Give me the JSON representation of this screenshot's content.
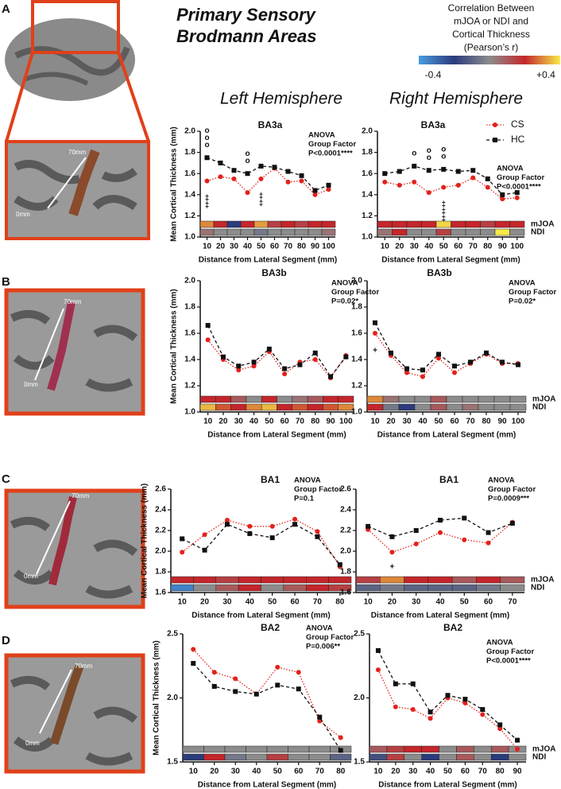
{
  "figure": {
    "title": [
      "Primary Sensory",
      "Brodmann Areas"
    ],
    "hemispheres": [
      "Left Hemisphere",
      "Right Hemisphere"
    ],
    "panels": [
      {
        "label": "A",
        "scale_labels": [
          "70mm",
          "0mm"
        ]
      },
      {
        "label": "B",
        "scale_labels": [
          "70mm",
          "0mm"
        ]
      },
      {
        "label": "C",
        "scale_labels": [
          "70mm",
          "0mm"
        ]
      },
      {
        "label": "D",
        "scale_labels": [
          "70mm",
          "0mm"
        ]
      }
    ],
    "colorbar": {
      "title": [
        "Correlation Between",
        "mJOA or NDI and",
        "Cortical Thickness",
        "(Pearson’s r)"
      ],
      "range": [
        -0.4,
        0.4
      ],
      "colors": [
        "#4a9be0",
        "#2c3b7c",
        "#8c8c8c",
        "#c4262b",
        "#f7ea4a"
      ],
      "ticks": [
        -0.4,
        {
          "value": 0.4,
          "label": "+0.4"
        }
      ]
    }
  },
  "chart_data": [
    {
      "type": "line",
      "title": "BA3a",
      "annotation": [
        "ANOVA",
        "Group Factor",
        "P<0.0001****"
      ],
      "ylabel": "Mean Cortical Thickness (mm)",
      "xlabel": "Distance from Lateral Segment (mm)",
      "x": [
        10,
        20,
        30,
        40,
        50,
        60,
        70,
        80,
        90,
        100
      ],
      "xlim": [
        5,
        105
      ],
      "ylim": [
        1,
        2
      ],
      "yticks": [
        {
          "value": 1,
          "label": "1.0"
        },
        1.2,
        1.4,
        1.6,
        1.8,
        {
          "value": 2,
          "label": "2.0"
        }
      ],
      "series": [
        {
          "name": "CS",
          "color": "#e3211c",
          "line_style": "dotted",
          "marker": "circle",
          "values": [
            1.53,
            1.57,
            1.55,
            1.42,
            1.55,
            1.65,
            1.52,
            1.53,
            1.4,
            1.45
          ]
        },
        {
          "name": "HC",
          "color": "#111111",
          "line_style": "dashed",
          "marker": "square",
          "values": [
            1.75,
            1.7,
            1.63,
            1.6,
            1.67,
            1.66,
            1.62,
            1.58,
            1.44,
            1.49
          ]
        }
      ],
      "strips": [
        {
          "values": [
            0.3,
            0.2,
            -0.2,
            0.2,
            0.32,
            0.15,
            0.2,
            0.15,
            0.2,
            0.2
          ]
        },
        {
          "values": [
            0.05,
            0,
            0,
            0,
            -0.05,
            0,
            0,
            0,
            0,
            0.05
          ]
        }
      ],
      "sig_above": [
        {
          "x": 10,
          "symbols": [
            "o",
            "o",
            "o"
          ]
        },
        {
          "x": 40,
          "symbols": [
            "o",
            "o"
          ]
        }
      ],
      "sig_below": [
        {
          "x": 10,
          "symbols": [
            "‡",
            "‡"
          ]
        },
        {
          "x": 50,
          "symbols": [
            "‡",
            "‡"
          ]
        }
      ]
    },
    {
      "type": "line",
      "title": "BA3a",
      "annotation": [
        "ANOVA",
        "Group Factor",
        "P<0.0001****"
      ],
      "legend": true,
      "xlabel": "Distance from Lateral Segment (mm)",
      "x": [
        10,
        20,
        30,
        40,
        50,
        60,
        70,
        80,
        90,
        100
      ],
      "xlim": [
        5,
        105
      ],
      "ylim": [
        1,
        2
      ],
      "yticks": [
        {
          "value": 1,
          "label": "1.0"
        },
        1.2,
        1.4,
        1.6,
        1.8,
        {
          "value": 2,
          "label": "2.0"
        }
      ],
      "series": [
        {
          "name": "CS",
          "color": "#e3211c",
          "line_style": "dotted",
          "marker": "circle",
          "values": [
            1.52,
            1.49,
            1.52,
            1.42,
            1.47,
            1.49,
            1.56,
            1.47,
            1.36,
            1.37
          ]
        },
        {
          "name": "HC",
          "color": "#111111",
          "line_style": "dashed",
          "marker": "square",
          "values": [
            1.6,
            1.62,
            1.67,
            1.63,
            1.64,
            1.62,
            1.63,
            1.55,
            1.4,
            1.42
          ]
        }
      ],
      "strips": [
        {
          "name": "mJOA",
          "values": [
            0.2,
            0.2,
            0.2,
            0.2,
            0.38,
            0.2,
            0.2,
            0.15,
            0.2,
            0.2
          ]
        },
        {
          "name": "NDI",
          "values": [
            0.05,
            0.2,
            0,
            0,
            0.15,
            0,
            0,
            0,
            0.4,
            0
          ]
        }
      ],
      "sig_above": [
        {
          "x": 30,
          "symbols": [
            "o"
          ]
        },
        {
          "x": 40,
          "symbols": [
            "o",
            "o"
          ]
        },
        {
          "x": 50,
          "symbols": [
            "o",
            "o"
          ]
        }
      ],
      "sig_below": [
        {
          "x": 50,
          "symbols": [
            "‡",
            "‡",
            "‡"
          ]
        }
      ]
    },
    {
      "type": "line",
      "title": "BA3b",
      "annotation": [
        "ANOVA",
        "Group Factor",
        "P=0.02*"
      ],
      "ylabel": "Mean Cortical Thickness (mm)",
      "xlabel": "Distance from Lateral Segment (mm)",
      "x": [
        10,
        20,
        30,
        40,
        50,
        60,
        70,
        80,
        90,
        100
      ],
      "xlim": [
        5,
        105
      ],
      "ylim": [
        1,
        2
      ],
      "yticks": [
        {
          "value": 1,
          "label": "1.0"
        },
        1.2,
        1.4,
        1.6,
        1.8,
        {
          "value": 2,
          "label": "2.0"
        }
      ],
      "series": [
        {
          "name": "CS",
          "color": "#e3211c",
          "line_style": "dotted",
          "marker": "circle",
          "values": [
            1.55,
            1.4,
            1.32,
            1.35,
            1.46,
            1.29,
            1.38,
            1.4,
            1.26,
            1.43
          ]
        },
        {
          "name": "HC",
          "color": "#111111",
          "line_style": "dashed",
          "marker": "square",
          "values": [
            1.66,
            1.42,
            1.35,
            1.38,
            1.48,
            1.33,
            1.36,
            1.45,
            1.27,
            1.42
          ]
        }
      ],
      "strips": [
        {
          "values": [
            0.2,
            0.2,
            0.1,
            0,
            0.2,
            0,
            0.05,
            0.1,
            0.2,
            0.2
          ]
        },
        {
          "values": [
            0.35,
            0.25,
            0.2,
            0.3,
            0.35,
            0.2,
            0.25,
            0.2,
            0.25,
            0.3
          ]
        }
      ]
    },
    {
      "type": "line",
      "title": "BA3b",
      "annotation": [
        "ANOVA",
        "Group Factor",
        "P=0.02*"
      ],
      "xlabel": "Distance from Lateral Segment (mm)",
      "x": [
        10,
        20,
        30,
        40,
        50,
        60,
        70,
        80,
        90,
        100
      ],
      "xlim": [
        5,
        105
      ],
      "ylim": [
        1,
        2
      ],
      "yticks": [
        {
          "value": 1,
          "label": "1.0"
        },
        1.2,
        1.4,
        1.6,
        1.8,
        {
          "value": 2,
          "label": "2.0"
        }
      ],
      "series": [
        {
          "name": "CS",
          "color": "#e3211c",
          "line_style": "dotted",
          "marker": "circle",
          "values": [
            1.6,
            1.43,
            1.3,
            1.27,
            1.41,
            1.3,
            1.37,
            1.44,
            1.37,
            1.37
          ]
        },
        {
          "name": "HC",
          "color": "#111111",
          "line_style": "dashed",
          "marker": "square",
          "values": [
            1.68,
            1.45,
            1.33,
            1.32,
            1.44,
            1.35,
            1.38,
            1.45,
            1.38,
            1.36
          ]
        }
      ],
      "strips": [
        {
          "name": "mJOA",
          "values": [
            0.3,
            0.05,
            0,
            0,
            0.1,
            0,
            0,
            0,
            0,
            0
          ]
        },
        {
          "name": "NDI",
          "values": [
            0.2,
            -0.05,
            -0.2,
            0,
            0.1,
            0,
            0.05,
            0,
            0,
            0
          ]
        }
      ],
      "sig_below": [
        {
          "x": 10,
          "symbols": [
            "+"
          ]
        }
      ]
    },
    {
      "type": "line",
      "title": "BA1",
      "annotation": [
        "ANOVA",
        "Group Factor",
        "P=0.1"
      ],
      "ylabel": "Mean Cortical Thickness (mm)",
      "xlabel": "Distance from Lateral Segment (mm)",
      "x": [
        10,
        20,
        30,
        40,
        50,
        60,
        70,
        80
      ],
      "xlim": [
        5,
        85
      ],
      "ylim": [
        1.6,
        2.6
      ],
      "yticks": [
        1.6,
        1.8,
        {
          "value": 2,
          "label": "2.0"
        },
        2.2,
        2.4,
        2.6
      ],
      "series": [
        {
          "name": "CS",
          "color": "#e3211c",
          "line_style": "dotted",
          "marker": "circle",
          "values": [
            1.99,
            2.16,
            2.3,
            2.24,
            2.24,
            2.31,
            2.19,
            1.85
          ]
        },
        {
          "name": "HC",
          "color": "#111111",
          "line_style": "dashed",
          "marker": "square",
          "values": [
            2.12,
            2.01,
            2.26,
            2.17,
            2.13,
            2.26,
            2.14,
            1.87
          ]
        }
      ],
      "strips": [
        {
          "values": [
            0.2,
            0.2,
            0.15,
            0.2,
            0.2,
            0.2,
            0.2,
            0.2
          ]
        },
        {
          "values": [
            -0.35,
            0,
            0.1,
            0.2,
            0,
            0.1,
            0.2,
            0.15
          ]
        }
      ]
    },
    {
      "type": "line",
      "title": "BA1",
      "annotation": [
        "ANOVA",
        "Group Factor",
        "P=0.0009***"
      ],
      "xlabel": "Distance from Lateral Segment (mm)",
      "x": [
        10,
        20,
        30,
        40,
        50,
        60,
        70
      ],
      "xlim": [
        5,
        75
      ],
      "ylim": [
        1.6,
        2.6
      ],
      "yticks": [
        1.6,
        1.8,
        {
          "value": 2,
          "label": "2.0"
        },
        2.2,
        2.4,
        2.6
      ],
      "series": [
        {
          "name": "CS",
          "color": "#e3211c",
          "line_style": "dotted",
          "marker": "circle",
          "values": [
            2.21,
            1.99,
            2.07,
            2.18,
            2.11,
            2.08,
            2.28
          ]
        },
        {
          "name": "HC",
          "color": "#111111",
          "line_style": "dashed",
          "marker": "square",
          "values": [
            2.24,
            2.14,
            2.2,
            2.3,
            2.32,
            2.18,
            2.27
          ]
        }
      ],
      "strips": [
        {
          "name": "mJOA",
          "values": [
            0.15,
            0.3,
            0.2,
            0.2,
            0.1,
            0.2,
            0.1
          ]
        },
        {
          "name": "NDI",
          "values": [
            -0.1,
            -0.05,
            -0.1,
            -0.1,
            -0.1,
            -0.05,
            0
          ]
        }
      ],
      "sig_below": [
        {
          "x": 20,
          "symbols": [
            "+"
          ]
        }
      ]
    },
    {
      "type": "line",
      "title": "BA2",
      "annotation": [
        "ANOVA",
        "Group Factor",
        "P=0.006**"
      ],
      "ylabel": "Mean Cortical Thickness (mm)",
      "xlabel": "Distance from Lateral Segment (mm)",
      "x": [
        10,
        20,
        30,
        40,
        50,
        60,
        70,
        80
      ],
      "xlim": [
        5,
        85
      ],
      "ylim": [
        1.5,
        2.5
      ],
      "yticks": [
        1.5,
        {
          "value": 2,
          "label": "2.0"
        },
        2.5
      ],
      "series": [
        {
          "name": "CS",
          "color": "#e3211c",
          "line_style": "dotted",
          "marker": "circle",
          "values": [
            2.38,
            2.2,
            2.15,
            2.03,
            2.24,
            2.2,
            1.82,
            1.69
          ]
        },
        {
          "name": "HC",
          "color": "#111111",
          "line_style": "dashed",
          "marker": "square",
          "values": [
            2.27,
            2.09,
            2.05,
            2.03,
            2.1,
            2.07,
            1.85,
            1.59
          ]
        }
      ],
      "strips": [
        {
          "values": [
            0,
            0,
            0,
            0,
            0,
            0,
            0,
            0
          ]
        },
        {
          "values": [
            -0.2,
            0.2,
            -0.05,
            0,
            0.15,
            0,
            0,
            -0.1
          ]
        }
      ]
    },
    {
      "type": "line",
      "title": "BA2",
      "annotation": [
        "ANOVA",
        "Group Factor",
        "P<0.0001****"
      ],
      "xlabel": "Distance from Lateral Segment (mm)",
      "x": [
        10,
        20,
        30,
        40,
        50,
        60,
        70,
        80,
        90
      ],
      "xlim": [
        5,
        95
      ],
      "ylim": [
        1.5,
        2.5
      ],
      "yticks": [
        1.5,
        {
          "value": 2,
          "label": "2.0"
        },
        2.5
      ],
      "series": [
        {
          "name": "CS",
          "color": "#e3211c",
          "line_style": "dotted",
          "marker": "circle",
          "values": [
            2.22,
            1.93,
            1.91,
            1.84,
            2.0,
            1.96,
            1.87,
            1.76,
            1.6
          ]
        },
        {
          "name": "HC",
          "color": "#111111",
          "line_style": "dashed",
          "marker": "square",
          "values": [
            2.37,
            2.11,
            2.11,
            1.89,
            2.02,
            1.99,
            1.91,
            1.79,
            1.67
          ]
        }
      ],
      "strips": [
        {
          "name": "mJOA",
          "values": [
            0.1,
            0.15,
            0.2,
            0.2,
            0,
            0.1,
            0,
            0.1,
            0
          ]
        },
        {
          "name": "NDI",
          "values": [
            -0.15,
            0.15,
            0,
            -0.2,
            0,
            0.1,
            0,
            -0.2,
            0
          ]
        }
      ]
    }
  ]
}
